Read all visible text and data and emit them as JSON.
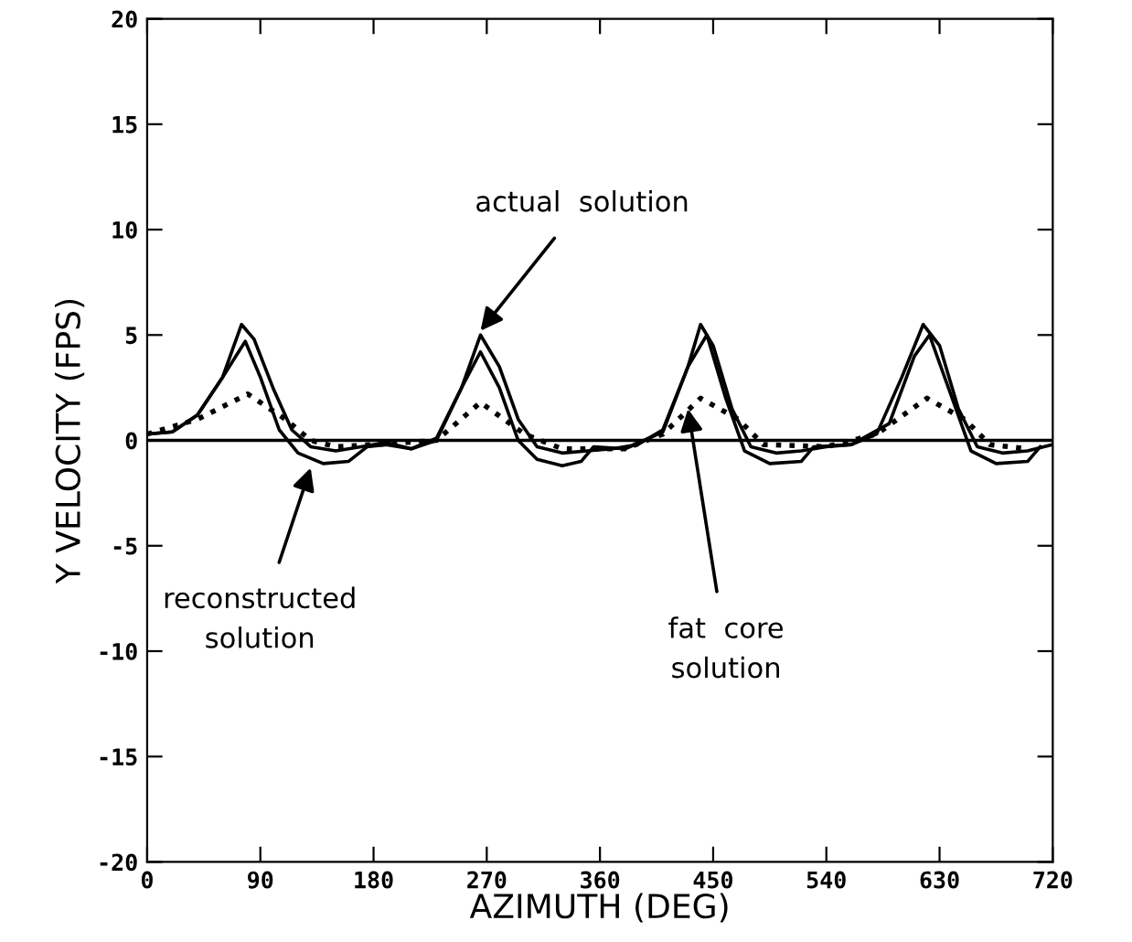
{
  "chart_data": {
    "type": "line",
    "xlabel": "AZIMUTH (DEG)",
    "ylabel": "Y VELOCITY (FPS)",
    "xlim": [
      0,
      720
    ],
    "xticks": [
      0,
      90,
      180,
      270,
      360,
      450,
      540,
      630,
      720
    ],
    "ylim": [
      -20,
      20
    ],
    "yticks": [
      -20,
      -15,
      -10,
      -5,
      0,
      5,
      10,
      15,
      20
    ],
    "grid": false,
    "legend": false,
    "marker": "none",
    "ref_lines": [
      {
        "axis": "y",
        "value": 0,
        "color": "#000000",
        "line_style": "solid"
      }
    ],
    "series": [
      {
        "color": "#000000",
        "line_style": "solid",
        "x": [
          0,
          20,
          40,
          60,
          75,
          85,
          100,
          115,
          130,
          150,
          170,
          190,
          210,
          230,
          250,
          265,
          280,
          295,
          310,
          330,
          350,
          370,
          390,
          410,
          430,
          440,
          450,
          465,
          480,
          500,
          520,
          540,
          560,
          580,
          600,
          617,
          630,
          645,
          660,
          680,
          700,
          720
        ],
        "values": [
          0.3,
          0.4,
          1.2,
          3,
          5.5,
          4.8,
          2.5,
          0.5,
          -0.3,
          -0.5,
          -0.3,
          -0.1,
          -0.4,
          0,
          2.5,
          5.0,
          3.5,
          1,
          -0.3,
          -0.6,
          -0.5,
          -0.4,
          -0.2,
          0.5,
          3.5,
          5.5,
          4.5,
          1.5,
          -0.3,
          -0.6,
          -0.5,
          -0.3,
          -0.2,
          0.3,
          3,
          5.5,
          4.5,
          1.5,
          -0.3,
          -0.6,
          -0.5,
          -0.2
        ]
      },
      {
        "color": "#000000",
        "line_style": "solid",
        "x": [
          0,
          20,
          40,
          60,
          78,
          90,
          105,
          120,
          140,
          160,
          175,
          190,
          210,
          230,
          250,
          265,
          280,
          295,
          310,
          330,
          345,
          355,
          380,
          410,
          430,
          445,
          460,
          475,
          495,
          520,
          530,
          560,
          590,
          610,
          622,
          640,
          655,
          675,
          700,
          710
        ],
        "values": [
          0.3,
          0.4,
          1.2,
          3,
          4.7,
          3,
          0.5,
          -0.6,
          -1.1,
          -1.0,
          -0.3,
          -0.2,
          -0.4,
          0.1,
          2.5,
          4.2,
          2.5,
          0,
          -0.9,
          -1.2,
          -1.0,
          -0.3,
          -0.4,
          0.4,
          3.5,
          5.0,
          2,
          -0.5,
          -1.1,
          -1.0,
          -0.3,
          -0.2,
          0.8,
          4,
          5.0,
          2,
          -0.5,
          -1.1,
          -1.0,
          -0.3
        ]
      },
      {
        "color": "#000000",
        "line_style": "dotted",
        "x": [
          0,
          40,
          80,
          110,
          130,
          150,
          180,
          230,
          265,
          300,
          330,
          380,
          410,
          440,
          470,
          490,
          540,
          580,
          620,
          650,
          670,
          700
        ],
        "values": [
          0.3,
          1,
          2.2,
          1,
          0,
          -0.3,
          -0.2,
          0,
          1.8,
          0.3,
          -0.4,
          -0.4,
          0.3,
          2,
          1,
          -0.2,
          -0.3,
          0.3,
          2,
          1,
          -0.2,
          -0.4
        ]
      }
    ],
    "annotations": [
      {
        "text": "actual  solution",
        "x": 265,
        "y": 5.2
      },
      {
        "text": "reconstructed\nsolution",
        "x": 130,
        "y": -1.3
      },
      {
        "text": "fat  core\nsolution",
        "x": 430,
        "y": 1.5
      }
    ]
  }
}
